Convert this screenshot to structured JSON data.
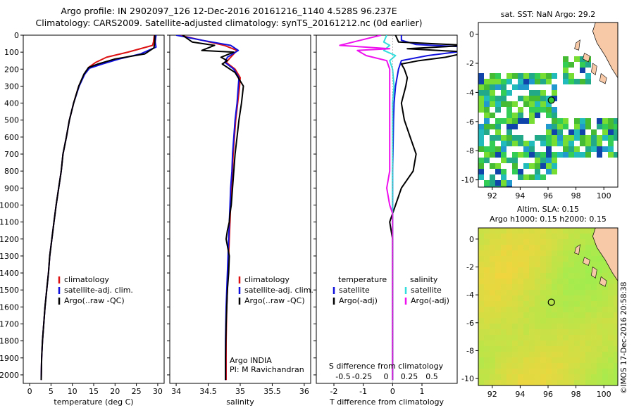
{
  "header": {
    "line1": "Argo profile: IN 2902097_126 12-Dec-2016 20161216_1140 4.528S 96.237E",
    "line2": "Climatology: CARS2009. Satellite-adjusted climatology: synTS_20161212.nc (0d earlier)"
  },
  "colors": {
    "climatology": "#dd1111",
    "satellite": "#1111dd",
    "argo": "#000000",
    "sat_salinity": "#33dddd",
    "argo_salinity": "#ee11ee"
  },
  "depth_axis": {
    "min": 0,
    "max": 2050,
    "ticks": [
      0,
      100,
      200,
      300,
      400,
      500,
      600,
      700,
      800,
      900,
      1000,
      1100,
      1200,
      1300,
      1400,
      1500,
      1600,
      1700,
      1800,
      1900,
      2000
    ]
  },
  "chart_data": [
    {
      "type": "line",
      "id": "temperature",
      "xlabel": "temperature (deg C)",
      "xlim": [
        -1.5,
        31.5
      ],
      "xticks": [
        0,
        5,
        10,
        15,
        20,
        25,
        30
      ],
      "ylim": [
        2050,
        0
      ],
      "legend": {
        "placement": "lower-left",
        "entries": [
          "climatology",
          "satellite-adj. clim.",
          "Argo(..raw -QC)"
        ]
      },
      "series": [
        {
          "name": "climatology",
          "color": "#dd1111",
          "x": [
            29.2,
            29.0,
            28.8,
            23,
            18,
            15.5,
            13.8,
            12.8,
            11.5,
            10.3,
            9.3,
            8.6,
            7.8,
            7.4,
            6.8,
            6.2,
            5.7,
            5.2,
            4.7,
            4.4,
            4.0,
            3.6,
            3.3,
            3.0,
            2.8,
            2.7
          ],
          "y": [
            0,
            40,
            60,
            100,
            130,
            160,
            190,
            230,
            300,
            400,
            500,
            600,
            700,
            800,
            900,
            1000,
            1100,
            1200,
            1300,
            1400,
            1500,
            1600,
            1700,
            1800,
            1900,
            2030
          ]
        },
        {
          "name": "satellite-adj. clim.",
          "color": "#1111dd",
          "x": [
            29.6,
            29.4,
            29.6,
            26,
            21,
            17,
            14,
            12.9,
            11.6,
            10.3,
            9.3,
            8.6,
            7.8,
            7.4,
            6.8,
            6.2,
            5.7,
            5.2,
            4.7,
            4.4,
            4.0,
            3.6,
            3.3,
            3.0,
            2.8,
            2.7
          ],
          "y": [
            0,
            40,
            70,
            110,
            140,
            170,
            195,
            230,
            300,
            400,
            500,
            600,
            700,
            800,
            900,
            1000,
            1100,
            1200,
            1300,
            1400,
            1500,
            1600,
            1700,
            1800,
            1900,
            2030
          ]
        },
        {
          "name": "Argo(..raw -QC)",
          "color": "#000000",
          "x": [
            29.3,
            29.3,
            29.1,
            27,
            20,
            16,
            13.8,
            12.7,
            11.5,
            10.3,
            9.3,
            8.6,
            7.8,
            7.4,
            6.8,
            6.2,
            5.7,
            5.2,
            4.7,
            4.4,
            4.0,
            3.6,
            3.3,
            3.0,
            2.8,
            2.7
          ],
          "y": [
            0,
            40,
            75,
            110,
            140,
            170,
            190,
            230,
            300,
            400,
            500,
            600,
            700,
            800,
            900,
            1000,
            1100,
            1200,
            1300,
            1400,
            1500,
            1600,
            1700,
            1800,
            1900,
            2030
          ]
        }
      ]
    },
    {
      "type": "line",
      "id": "salinity",
      "xlabel": "salinity",
      "xlim": [
        33.9,
        36.1
      ],
      "xticks": [
        34,
        34.5,
        35,
        35.5,
        36
      ],
      "ylim": [
        2050,
        0
      ],
      "legend": {
        "placement": "lower-right",
        "entries": [
          "climatology",
          "satellite-adj. clim.",
          "Argo(..raw -QC)"
        ]
      },
      "annotations": [
        "Argo INDIA",
        "PI: M Ravichandran"
      ],
      "series": [
        {
          "name": "climatology",
          "color": "#dd1111",
          "x": [
            34.05,
            34.4,
            34.75,
            34.95,
            34.85,
            34.78,
            34.92,
            35.0,
            34.99,
            34.96,
            34.93,
            34.91,
            34.89,
            34.88,
            34.86,
            34.85,
            34.84,
            34.83,
            34.82,
            34.81,
            34.8,
            34.79,
            34.78,
            34.78
          ],
          "y": [
            0,
            30,
            60,
            90,
            130,
            160,
            200,
            250,
            300,
            400,
            500,
            600,
            700,
            800,
            900,
            1000,
            1100,
            1200,
            1300,
            1400,
            1500,
            1600,
            1800,
            2030
          ]
        },
        {
          "name": "satellite-adj. clim.",
          "color": "#1111dd",
          "x": [
            34.0,
            34.4,
            34.85,
            34.97,
            34.8,
            34.76,
            34.9,
            34.98,
            34.97,
            34.95,
            34.92,
            34.9,
            34.88,
            34.87,
            34.85,
            34.84,
            34.83,
            34.82,
            34.81,
            34.8,
            34.79,
            34.78,
            34.77,
            34.77
          ],
          "y": [
            0,
            30,
            60,
            90,
            130,
            160,
            200,
            250,
            300,
            400,
            500,
            600,
            700,
            800,
            900,
            1000,
            1100,
            1200,
            1300,
            1400,
            1500,
            1600,
            1800,
            2030
          ]
        },
        {
          "name": "Argo(..raw -QC)",
          "color": "#000000",
          "x": [
            34.1,
            34.25,
            34.6,
            34.4,
            34.9,
            34.7,
            34.8,
            34.72,
            34.92,
            35.05,
            35.02,
            34.98,
            34.95,
            34.92,
            34.9,
            34.88,
            34.86,
            34.84,
            34.83,
            34.8,
            34.78,
            34.83,
            34.82,
            34.8,
            34.79,
            34.78,
            34.77,
            34.77
          ],
          "y": [
            0,
            40,
            60,
            90,
            100,
            130,
            150,
            170,
            220,
            300,
            400,
            500,
            600,
            700,
            800,
            900,
            1000,
            1050,
            1100,
            1150,
            1200,
            1300,
            1400,
            1500,
            1600,
            1700,
            1900,
            2030
          ]
        }
      ]
    },
    {
      "type": "line",
      "id": "differences",
      "xlabel": "T difference from climatology",
      "xlabel_top": "S difference from climatology",
      "xlim": [
        -2.6,
        2.2
      ],
      "xticks": [
        -2,
        -1,
        0,
        1
      ],
      "xtick_labels": [
        "-2",
        "-1",
        "0",
        "1"
      ],
      "xticks_top_labels": [
        "-0.5",
        "-0.25",
        "0",
        "0.25",
        "0.5"
      ],
      "ylim": [
        2050,
        0
      ],
      "legend": {
        "placement": "lower-center",
        "group_titles": [
          "temperature",
          "salinity"
        ],
        "entries": [
          "satellite",
          "Argo(-adj)",
          "satellite",
          "Argo(-adj)"
        ]
      },
      "series": [
        {
          "name": "temperature satellite",
          "color": "#1111dd",
          "x": [
            0.3,
            0.3,
            0.8,
            2.6,
            2.6,
            1.2,
            0.3,
            0.2,
            0.1,
            0.05,
            0.03,
            0.02,
            0.01,
            0.0,
            0.0,
            0.0,
            0.0,
            0.0,
            0.0,
            0.0,
            0.0,
            0.0
          ],
          "y": [
            0,
            30,
            55,
            70,
            90,
            120,
            150,
            200,
            300,
            400,
            500,
            600,
            700,
            800,
            900,
            1000,
            1100,
            1200,
            1400,
            1600,
            1800,
            2030
          ]
        },
        {
          "name": "temperature Argo(-adj)",
          "color": "#000000",
          "x": [
            0.1,
            0.2,
            2.6,
            0.5,
            2.6,
            1.8,
            0.9,
            0.3,
            0.4,
            0.5,
            0.45,
            0.3,
            0.4,
            0.6,
            0.8,
            0.7,
            0.3,
            0.1,
            0.0,
            -0.1,
            0.0,
            0.0,
            0.0,
            0.0,
            0.0,
            0.0,
            0.0
          ],
          "y": [
            0,
            40,
            60,
            80,
            100,
            130,
            150,
            170,
            200,
            250,
            300,
            400,
            500,
            600,
            700,
            800,
            900,
            1000,
            1050,
            1100,
            1200,
            1300,
            1400,
            1600,
            1800,
            1900,
            2030
          ]
        },
        {
          "name": "salinity satellite",
          "color": "#33dddd",
          "x": [
            -0.2,
            -0.3,
            -0.1,
            -0.3,
            0.1,
            -0.1,
            0.0,
            0.05,
            0.0,
            0.0,
            0.0,
            0.0,
            0.0,
            0.0,
            0.0,
            0.0,
            0.0,
            0.0,
            0.0,
            0.0
          ],
          "y": [
            0,
            40,
            60,
            90,
            120,
            150,
            200,
            300,
            400,
            500,
            600,
            700,
            800,
            900,
            1000,
            1100,
            1200,
            1400,
            1600,
            2030
          ]
        },
        {
          "name": "salinity Argo(-adj)",
          "color": "#ee11ee",
          "x": [
            -0.4,
            -1.8,
            -0.1,
            -1.2,
            -0.9,
            -0.2,
            -0.1,
            -0.1,
            -0.1,
            -0.1,
            -0.1,
            -0.1,
            -0.1,
            -0.2,
            -0.1,
            0.0,
            0.0,
            0.0,
            0.0,
            0.0,
            0.0,
            0.0,
            0.0
          ],
          "y": [
            0,
            60,
            80,
            90,
            120,
            150,
            200,
            300,
            400,
            500,
            600,
            700,
            800,
            900,
            1000,
            1050,
            1100,
            1200,
            1300,
            1400,
            1600,
            1800,
            2030
          ]
        }
      ]
    },
    {
      "type": "heatmap",
      "id": "sst-map",
      "title": "sat. SST: NaN Argo: 29.2",
      "xlim": [
        91,
        101
      ],
      "ylim": [
        -10.5,
        0.8
      ],
      "xticks": [
        92,
        94,
        96,
        98,
        100
      ],
      "yticks": [
        0,
        -2,
        -4,
        -6,
        -8,
        -10
      ],
      "argo_position": {
        "lon": 96.237,
        "lat": -4.528
      }
    },
    {
      "type": "heatmap",
      "id": "sla-map",
      "title": "Altim. SLA: 0.15",
      "subtitle": "Argo h1000: 0.15 h2000: 0.15",
      "xlim": [
        91,
        101
      ],
      "ylim": [
        -10.5,
        0.8
      ],
      "xticks": [
        92,
        94,
        96,
        98,
        100
      ],
      "yticks": [
        0,
        -2,
        -4,
        -6,
        -8,
        -10
      ],
      "argo_position": {
        "lon": 96.237,
        "lat": -4.528
      }
    }
  ],
  "stamp": "©IMOS 17-Dec-2016 20:58:38"
}
